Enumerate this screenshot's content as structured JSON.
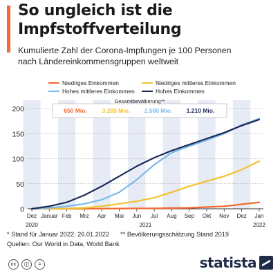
{
  "title_lines": [
    "So ungleich ist die",
    "Impfstoffverteilung"
  ],
  "subtitle_lines": [
    "Kumulierte Zahl der Corona-Impfungen je 100 Personen",
    "nach Ländereinkommensgruppen weltweit"
  ],
  "colors": {
    "accent": "#f26a2e",
    "low": "#f26a2e",
    "lower_middle": "#f2c12e",
    "upper_middle": "#7cb9e8",
    "high": "#1c2a5a",
    "band": "#e6ebf5"
  },
  "population_box": {
    "heading": "Gesamtbevölkerung**",
    "values": [
      "650 Mio.",
      "3.285 Mio.",
      "2.500 Mio.",
      "1.210 Mio."
    ]
  },
  "footer": {
    "note1": "* Stand für Januar 2022: 26.01.2022",
    "note2": "** Bevölkerungsschätzung Stand 2019",
    "sources": "Quellen: Our World in Data, World Bank"
  },
  "license_icons": [
    "cc-icon",
    "by-icon",
    "equals-icon"
  ],
  "logo": "statista",
  "chart_data": {
    "type": "line",
    "x_months": [
      "Dez",
      "Januar",
      "Feb",
      "Mrz",
      "Apr",
      "Mai",
      "Jun",
      "Jul",
      "Aug",
      "Sep",
      "Okt",
      "Nov",
      "Dez",
      "Jan"
    ],
    "year_labels": [
      {
        "label": "2020",
        "month_index": 0
      },
      {
        "label": "2021",
        "month_index": 6.5
      },
      {
        "label": "2022",
        "month_index": 13
      }
    ],
    "y_ticks": [
      0,
      50,
      100,
      150,
      200
    ],
    "ylim": [
      0,
      200
    ],
    "grid": "horizontal dashed",
    "legend_placement": "top",
    "series": [
      {
        "name": "Niedriges Einkommen",
        "color": "#f26a2e",
        "x": [
          0,
          3,
          5,
          7,
          9,
          11,
          12,
          13
        ],
        "y": [
          0,
          0,
          0.5,
          1,
          2,
          5,
          9,
          13
        ]
      },
      {
        "name": "Niedriges mittleres Einkommen",
        "color": "#f2c12e",
        "x": [
          0,
          2,
          3,
          4,
          5,
          6,
          7,
          8,
          9,
          10,
          11,
          12,
          13
        ],
        "y": [
          0,
          0.5,
          2,
          5,
          10,
          15,
          22,
          33,
          45,
          55,
          65,
          78,
          95
        ]
      },
      {
        "name": "Hohes mittleres Einkommen",
        "color": "#7cb9e8",
        "x": [
          0,
          1,
          2,
          3,
          4,
          5,
          6,
          7,
          8,
          9,
          10,
          11,
          12,
          13
        ],
        "y": [
          0,
          2,
          5,
          10,
          18,
          33,
          58,
          88,
          112,
          125,
          137,
          150,
          167,
          180
        ]
      },
      {
        "name": "Hohes Einkommen",
        "color": "#1c2a5a",
        "x": [
          0,
          1,
          2,
          3,
          4,
          5,
          6,
          7,
          8,
          9,
          10,
          11,
          12,
          13
        ],
        "y": [
          0,
          5,
          13,
          27,
          45,
          65,
          85,
          102,
          116,
          128,
          140,
          152,
          166,
          178
        ]
      }
    ]
  }
}
